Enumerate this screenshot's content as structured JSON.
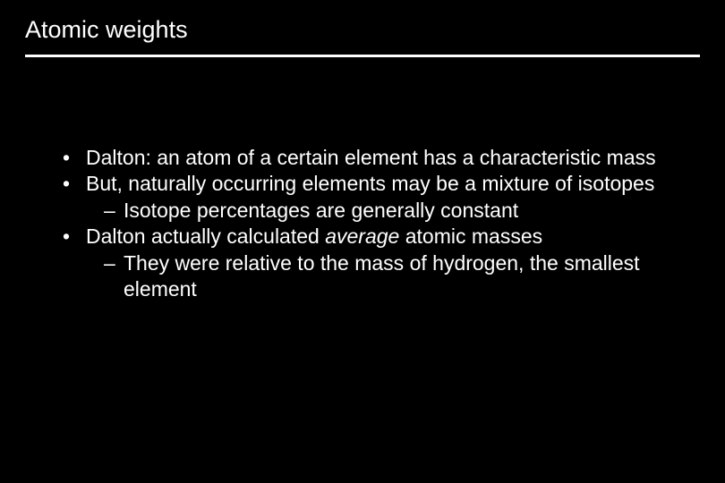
{
  "slide": {
    "title": "Atomic weights",
    "background_color": "#000000",
    "text_color": "#ffffff",
    "rule_color": "#ffffff",
    "title_fontsize": 27,
    "body_fontsize": 23,
    "bullets": [
      {
        "text": "Dalton: an atom of a certain element has a characteristic mass",
        "sub": []
      },
      {
        "text": "But, naturally occurring elements may be a mixture of isotopes",
        "sub": [
          {
            "text": "Isotope percentages are generally constant"
          }
        ]
      },
      {
        "text_pre": "Dalton actually calculated ",
        "text_em": "average",
        "text_post": " atomic masses",
        "sub": [
          {
            "text": "They were relative to the mass of hydrogen, the smallest element"
          }
        ]
      }
    ]
  }
}
